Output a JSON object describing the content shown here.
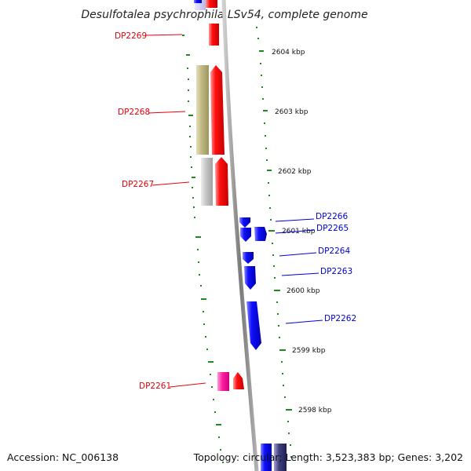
{
  "title": "Desulfotalea psychrophila LSv54, complete genome",
  "footer": {
    "accession": "Accession: NC_006138",
    "summary": "Topology: circular; Length: 3,523,383 bp; Genes: 3,202"
  },
  "scale_labels": [
    "2604 kbp",
    "2603 kbp",
    "2602 kbp",
    "2601 kbp",
    "2600 kbp",
    "2599 kbp",
    "2598 kbp"
  ],
  "genes": [
    {
      "label": "DP2269",
      "strand": "forward"
    },
    {
      "label": "DP2268",
      "strand": "forward"
    },
    {
      "label": "DP2267",
      "strand": "forward"
    },
    {
      "label": "DP2266",
      "strand": "reverse"
    },
    {
      "label": "DP2265",
      "strand": "reverse"
    },
    {
      "label": "DP2264",
      "strand": "reverse"
    },
    {
      "label": "DP2263",
      "strand": "reverse"
    },
    {
      "label": "DP2262",
      "strand": "reverse"
    },
    {
      "label": "DP2261",
      "strand": "forward"
    }
  ],
  "colors": {
    "forward": "#ff0000",
    "reverse": "#0000ff",
    "label_forward": "#e8000b",
    "label_reverse": "#0000d8",
    "backbone": "#8a8a8a",
    "tick": "#1e8a1e",
    "cog_olive": "#b8b07a",
    "cog_grey": "#c0c0c0",
    "cog_pink": "#ff2aa0"
  }
}
